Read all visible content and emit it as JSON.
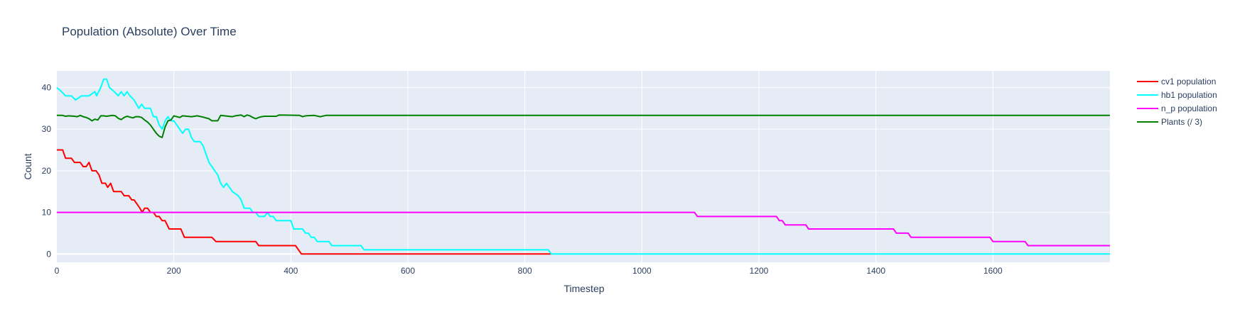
{
  "chart_data": {
    "type": "line",
    "title": "Population (Absolute) Over Time",
    "xlabel": "Timestep",
    "ylabel": "Count",
    "xlim": [
      0,
      1800
    ],
    "ylim": [
      -2,
      44
    ],
    "xticks": [
      0,
      200,
      400,
      600,
      800,
      1000,
      1200,
      1400,
      1600
    ],
    "yticks": [
      0,
      10,
      20,
      30,
      40
    ],
    "grid": true,
    "legend_position": "right",
    "series": [
      {
        "name": "cv1 population",
        "color": "#ff0000",
        "points": [
          [
            0,
            25
          ],
          [
            10,
            25
          ],
          [
            15,
            23
          ],
          [
            25,
            23
          ],
          [
            30,
            22
          ],
          [
            40,
            22
          ],
          [
            45,
            21
          ],
          [
            50,
            21
          ],
          [
            55,
            22
          ],
          [
            60,
            20
          ],
          [
            67,
            20
          ],
          [
            72,
            19
          ],
          [
            77,
            17
          ],
          [
            83,
            17
          ],
          [
            87,
            16
          ],
          [
            92,
            17
          ],
          [
            97,
            15
          ],
          [
            110,
            15
          ],
          [
            115,
            14
          ],
          [
            123,
            14
          ],
          [
            128,
            13
          ],
          [
            132,
            13
          ],
          [
            137,
            12
          ],
          [
            142,
            11
          ],
          [
            146,
            10
          ],
          [
            150,
            11
          ],
          [
            155,
            11
          ],
          [
            160,
            10
          ],
          [
            165,
            10
          ],
          [
            170,
            9
          ],
          [
            175,
            9
          ],
          [
            180,
            8
          ],
          [
            185,
            8
          ],
          [
            192,
            6
          ],
          [
            212,
            6
          ],
          [
            218,
            4
          ],
          [
            265,
            4
          ],
          [
            272,
            3
          ],
          [
            340,
            3
          ],
          [
            345,
            2
          ],
          [
            408,
            2
          ],
          [
            418,
            0
          ],
          [
            845,
            0
          ]
        ]
      },
      {
        "name": "hb1 population",
        "color": "#00ffff",
        "points": [
          [
            0,
            40
          ],
          [
            8,
            39
          ],
          [
            15,
            38
          ],
          [
            25,
            38
          ],
          [
            32,
            37
          ],
          [
            42,
            38
          ],
          [
            55,
            38
          ],
          [
            65,
            39
          ],
          [
            68,
            38
          ],
          [
            75,
            40
          ],
          [
            80,
            42
          ],
          [
            85,
            42
          ],
          [
            90,
            40
          ],
          [
            98,
            39
          ],
          [
            105,
            38
          ],
          [
            110,
            39
          ],
          [
            115,
            38
          ],
          [
            120,
            39
          ],
          [
            125,
            38
          ],
          [
            132,
            37
          ],
          [
            140,
            35
          ],
          [
            145,
            36
          ],
          [
            150,
            35
          ],
          [
            160,
            35
          ],
          [
            165,
            33
          ],
          [
            170,
            33
          ],
          [
            175,
            31
          ],
          [
            180,
            30
          ],
          [
            185,
            32
          ],
          [
            190,
            33
          ],
          [
            195,
            32
          ],
          [
            200,
            32
          ],
          [
            205,
            31
          ],
          [
            210,
            30
          ],
          [
            215,
            29
          ],
          [
            220,
            30
          ],
          [
            225,
            30
          ],
          [
            230,
            28
          ],
          [
            235,
            27
          ],
          [
            245,
            27
          ],
          [
            250,
            26
          ],
          [
            255,
            24
          ],
          [
            260,
            22
          ],
          [
            265,
            21
          ],
          [
            270,
            20
          ],
          [
            275,
            19
          ],
          [
            280,
            17
          ],
          [
            285,
            16
          ],
          [
            290,
            17
          ],
          [
            295,
            16
          ],
          [
            300,
            15
          ],
          [
            310,
            14
          ],
          [
            315,
            13
          ],
          [
            320,
            11
          ],
          [
            330,
            11
          ],
          [
            335,
            10
          ],
          [
            340,
            10
          ],
          [
            345,
            9
          ],
          [
            355,
            9
          ],
          [
            360,
            10
          ],
          [
            365,
            9
          ],
          [
            370,
            9
          ],
          [
            375,
            8
          ],
          [
            400,
            8
          ],
          [
            405,
            6
          ],
          [
            420,
            6
          ],
          [
            425,
            5
          ],
          [
            430,
            5
          ],
          [
            435,
            4
          ],
          [
            440,
            4
          ],
          [
            445,
            3
          ],
          [
            465,
            3
          ],
          [
            470,
            2
          ],
          [
            520,
            2
          ],
          [
            525,
            1
          ],
          [
            840,
            1
          ],
          [
            845,
            0
          ],
          [
            1800,
            0
          ]
        ]
      },
      {
        "name": "n_p population",
        "color": "#ff00ff",
        "points": [
          [
            0,
            10
          ],
          [
            1090,
            10
          ],
          [
            1095,
            9
          ],
          [
            1230,
            9
          ],
          [
            1235,
            8
          ],
          [
            1240,
            8
          ],
          [
            1245,
            7
          ],
          [
            1280,
            7
          ],
          [
            1285,
            6
          ],
          [
            1430,
            6
          ],
          [
            1435,
            5
          ],
          [
            1455,
            5
          ],
          [
            1460,
            4
          ],
          [
            1595,
            4
          ],
          [
            1600,
            3
          ],
          [
            1655,
            3
          ],
          [
            1660,
            2
          ],
          [
            1800,
            2
          ]
        ]
      },
      {
        "name": "Plants (/ 3)",
        "color": "#008000",
        "points": [
          [
            0,
            33.3
          ],
          [
            10,
            33.3
          ],
          [
            15,
            33.1
          ],
          [
            20,
            33.2
          ],
          [
            30,
            33.1
          ],
          [
            35,
            33.0
          ],
          [
            40,
            33.3
          ],
          [
            45,
            33.0
          ],
          [
            50,
            32.8
          ],
          [
            55,
            32.5
          ],
          [
            60,
            32.0
          ],
          [
            65,
            32.4
          ],
          [
            70,
            32.2
          ],
          [
            75,
            33.2
          ],
          [
            80,
            33.2
          ],
          [
            85,
            33.1
          ],
          [
            90,
            33.2
          ],
          [
            95,
            33.3
          ],
          [
            100,
            33.2
          ],
          [
            105,
            32.6
          ],
          [
            110,
            32.3
          ],
          [
            115,
            32.8
          ],
          [
            120,
            33.1
          ],
          [
            125,
            32.9
          ],
          [
            130,
            32.7
          ],
          [
            135,
            33.0
          ],
          [
            140,
            33.0
          ],
          [
            145,
            32.8
          ],
          [
            150,
            32.2
          ],
          [
            155,
            31.7
          ],
          [
            160,
            31.0
          ],
          [
            165,
            30.0
          ],
          [
            170,
            29.0
          ],
          [
            175,
            28.3
          ],
          [
            180,
            28.0
          ],
          [
            185,
            30.5
          ],
          [
            190,
            32.0
          ],
          [
            195,
            32.2
          ],
          [
            200,
            33.2
          ],
          [
            205,
            33.0
          ],
          [
            210,
            32.8
          ],
          [
            215,
            33.2
          ],
          [
            230,
            33.0
          ],
          [
            240,
            33.2
          ],
          [
            250,
            32.9
          ],
          [
            260,
            32.5
          ],
          [
            265,
            32.0
          ],
          [
            275,
            32.0
          ],
          [
            280,
            33.3
          ],
          [
            300,
            33.0
          ],
          [
            305,
            33.2
          ],
          [
            315,
            33.4
          ],
          [
            320,
            33.0
          ],
          [
            325,
            33.4
          ],
          [
            330,
            33.2
          ],
          [
            335,
            32.8
          ],
          [
            340,
            32.5
          ],
          [
            345,
            32.8
          ],
          [
            350,
            33.0
          ],
          [
            355,
            33.1
          ],
          [
            375,
            33.1
          ],
          [
            380,
            33.4
          ],
          [
            415,
            33.3
          ],
          [
            420,
            33.0
          ],
          [
            425,
            33.2
          ],
          [
            440,
            33.3
          ],
          [
            450,
            33.0
          ],
          [
            460,
            33.3
          ],
          [
            1800,
            33.3
          ]
        ]
      }
    ]
  }
}
